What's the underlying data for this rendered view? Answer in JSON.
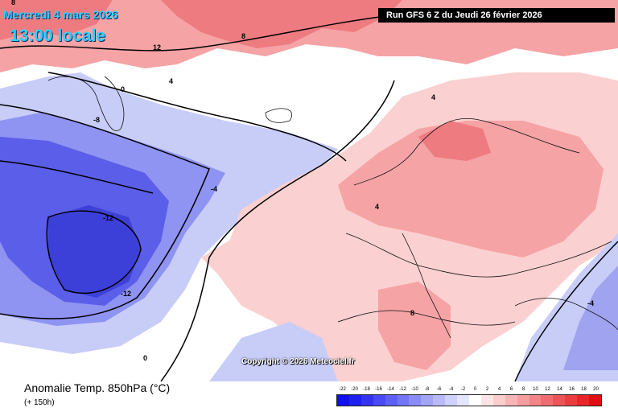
{
  "title": {
    "date": "Mercredi 4 mars 2026",
    "time": "13:00 locale"
  },
  "run_info": "Run GFS 6 Z du Jeudi 26 février 2026",
  "copyright": "Copyright © 2026 Meteociel.fr",
  "variable_label": "Anomalie Temp. 850hPa (°C)",
  "lead_label": "(+ 150h)",
  "colors": {
    "cold_strong": "#3434e0",
    "cold_mid": "#7a7ef0",
    "cold_light": "#c8cdf8",
    "neutral": "#ffffff",
    "warm_light": "#fbd0d0",
    "warm_mid": "#f5a3a5",
    "warm_strong": "#ee7b80",
    "contour": "#000000"
  },
  "scale": {
    "ticks": [
      "-22",
      "-20",
      "-18",
      "-16",
      "-14",
      "-12",
      "-10",
      "-8",
      "-6",
      "-4",
      "-2",
      "0",
      "2",
      "4",
      "6",
      "8",
      "10",
      "12",
      "14",
      "16",
      "18",
      "20"
    ],
    "colors": [
      "#1010e8",
      "#2020ee",
      "#3434f0",
      "#4a4af2",
      "#5e60f3",
      "#7375f4",
      "#8a8cf5",
      "#a2a4f6",
      "#b8baf8",
      "#cfd1fa",
      "#e4e6fc",
      "#ffffff",
      "#fde4e4",
      "#fbcdcd",
      "#f8b5b6",
      "#f59d9f",
      "#f28587",
      "#ef6d70",
      "#ec5558",
      "#ea3d41",
      "#e8262a",
      "#e00e12"
    ]
  },
  "contour_labels": [
    {
      "text": "8",
      "region": "n-atlantic"
    },
    {
      "text": "12",
      "region": "norwegian-sea"
    },
    {
      "text": "8",
      "region": "svalbard"
    },
    {
      "text": "4",
      "region": "iceland"
    },
    {
      "text": "0",
      "region": "greenland"
    },
    {
      "text": "-8",
      "region": "labrador"
    },
    {
      "text": "-12",
      "region": "canada"
    },
    {
      "text": "-12",
      "region": "atlantic-west"
    },
    {
      "text": "-4",
      "region": "atlantic-mid"
    },
    {
      "text": "4",
      "region": "europe"
    },
    {
      "text": "8",
      "region": "mediterranean"
    },
    {
      "text": "0",
      "region": "africa"
    },
    {
      "text": "-4",
      "region": "russia-east"
    },
    {
      "text": "4",
      "region": "scandinavia"
    }
  ]
}
